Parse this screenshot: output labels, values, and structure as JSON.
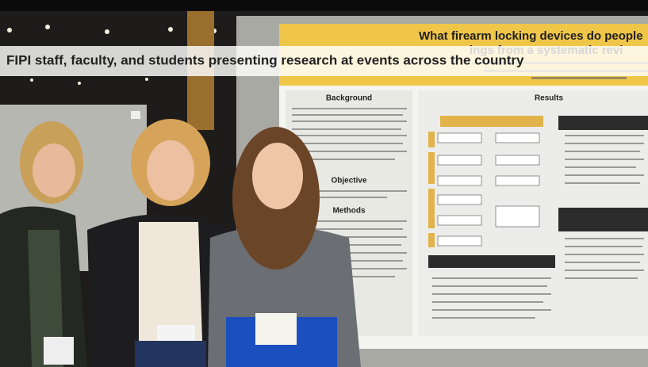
{
  "caption": "FIPI staff, faculty, and students presenting research at events across the country",
  "poster": {
    "title_line1": "What firearm locking devices do people",
    "title_line2": "ings from a systematic revi",
    "sections": {
      "background": "Background",
      "objective": "Objective",
      "methods": "Methods",
      "results": "Results"
    }
  }
}
